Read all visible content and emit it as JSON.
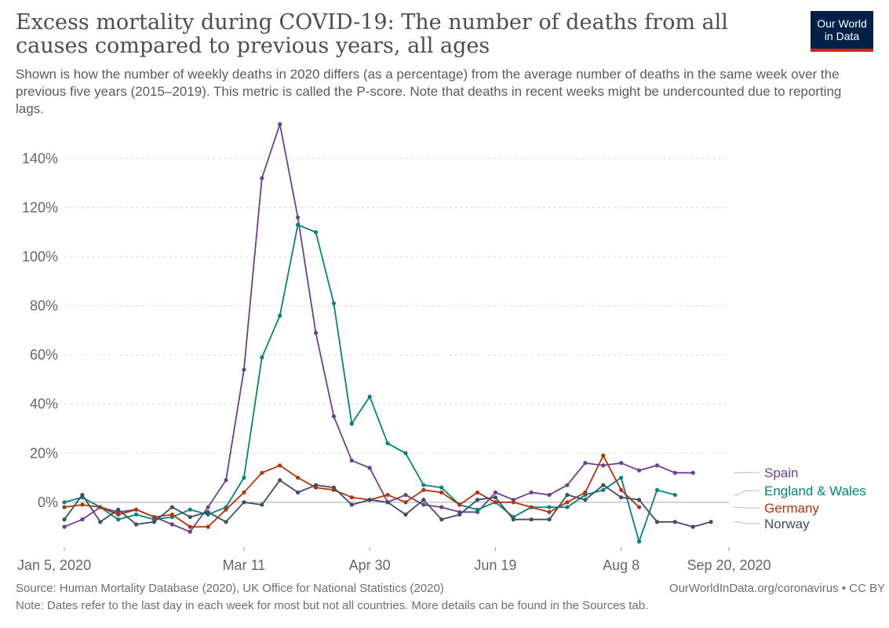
{
  "header": {
    "title": "Excess mortality during COVID-19: The number of deaths from all causes compared to previous years, all ages",
    "subtitle": "Shown is how the number of weekly deaths in 2020 differs (as a percentage) from the average number of deaths in the same week over the previous five years (2015–2019). This metric is called the P-score. Note that deaths in recent weeks might be undercounted due to reporting lags.",
    "logo_line1": "Our World",
    "logo_line2": "in Data"
  },
  "footer": {
    "source": "Source: Human Mortality Database (2020), UK Office for National Statistics (2020)",
    "link": "OurWorldInData.org/coronavirus • CC BY",
    "note": "Note: Dates refer to the last day in each week for most but not all countries. More details can be found in the Sources tab."
  },
  "chart_data": {
    "type": "line",
    "x": [
      1,
      2,
      3,
      4,
      5,
      6,
      7,
      8,
      9,
      10,
      11,
      12,
      13,
      14,
      15,
      16,
      17,
      18,
      19,
      20,
      21,
      22,
      23,
      24,
      25,
      26,
      27,
      28,
      29,
      30,
      31,
      32,
      33,
      34,
      35,
      36,
      37,
      38
    ],
    "x_ticks": [
      {
        "week": 1,
        "label": "Jan 5, 2020"
      },
      {
        "week": 11,
        "label": "Mar 11"
      },
      {
        "week": 18,
        "label": "Apr 30"
      },
      {
        "week": 25,
        "label": "Jun 19"
      },
      {
        "week": 32,
        "label": "Aug 8"
      },
      {
        "week": 38,
        "label": "Sep 20, 2020"
      }
    ],
    "y_ticks": [
      {
        "value": 0,
        "label": "0%"
      },
      {
        "value": 20,
        "label": "20%"
      },
      {
        "value": 40,
        "label": "40%"
      },
      {
        "value": 60,
        "label": "60%"
      },
      {
        "value": 80,
        "label": "80%"
      },
      {
        "value": 100,
        "label": "100%"
      },
      {
        "value": 120,
        "label": "120%"
      },
      {
        "value": 140,
        "label": "140%"
      }
    ],
    "ylim": [
      -17,
      155
    ],
    "xlim": [
      1,
      38
    ],
    "grid": "horizontal-dashed",
    "legend": "right",
    "series": [
      {
        "name": "Spain",
        "color": "#6d3e91",
        "values": [
          -10,
          -7,
          -2,
          -4,
          -3,
          -6,
          -9,
          -12,
          -2,
          9,
          54,
          132,
          154,
          116,
          69,
          35,
          17,
          14,
          0,
          3,
          -1,
          -2,
          -4,
          -4,
          4,
          1,
          4,
          3,
          7,
          16,
          15,
          16,
          13,
          15,
          12,
          12,
          null,
          null
        ]
      },
      {
        "name": "England & Wales",
        "color": "#00847e",
        "values": [
          0,
          2,
          -2,
          -7,
          -5,
          -7,
          -6,
          -3,
          -5,
          -2,
          10,
          59,
          76,
          113,
          110,
          81,
          32,
          43,
          24,
          20,
          7,
          6,
          -1,
          -3,
          0,
          -6,
          -2,
          -2,
          -2,
          3,
          5,
          10,
          -16,
          5,
          3,
          null,
          null,
          null
        ]
      },
      {
        "name": "Germany",
        "color": "#b13507",
        "values": [
          -2,
          -1,
          -2,
          -5,
          -3,
          -6,
          -5,
          -10,
          -10,
          -3,
          4,
          12,
          15,
          10,
          6,
          5,
          2,
          1,
          3,
          0,
          5,
          4,
          -1,
          4,
          0,
          0,
          -2,
          -4,
          0,
          4,
          19,
          5,
          -2,
          null,
          null,
          null,
          null,
          null
        ]
      },
      {
        "name": "Norway",
        "color": "#3c4e66",
        "values": [
          -7,
          3,
          -8,
          -3,
          -9,
          -8,
          -2,
          -6,
          -4,
          -8,
          0,
          -1,
          9,
          4,
          7,
          6,
          -1,
          1,
          0,
          -5,
          1,
          -7,
          -5,
          1,
          2,
          -7,
          -7,
          -7,
          3,
          1,
          7,
          2,
          1,
          -8,
          -8,
          -10,
          -8,
          null
        ]
      }
    ]
  }
}
